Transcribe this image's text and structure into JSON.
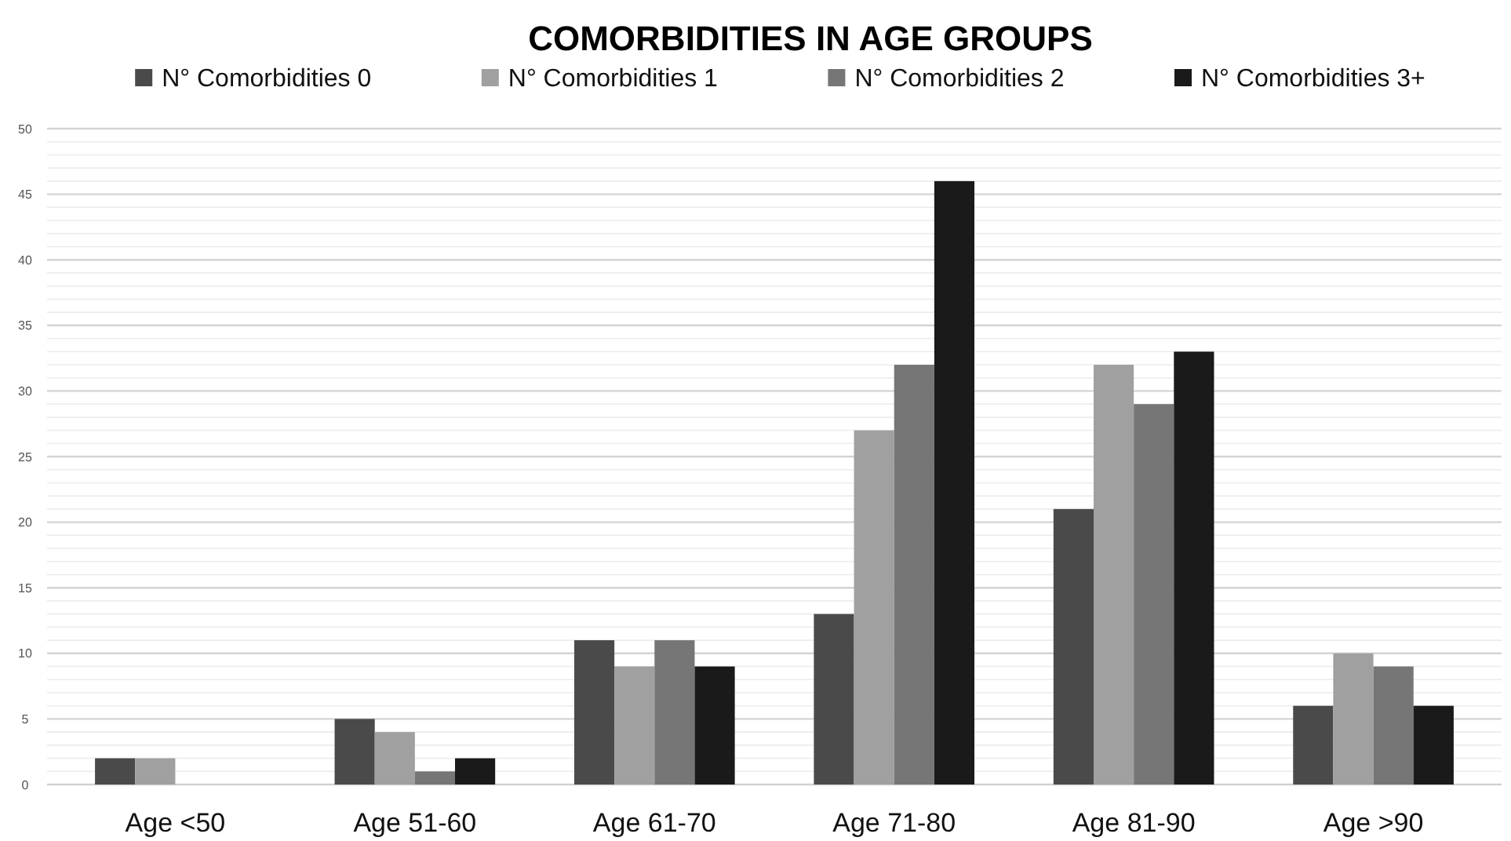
{
  "chart_data": {
    "type": "bar",
    "title": "COMORBIDITIES IN AGE GROUPS",
    "categories": [
      "Age <50",
      "Age 51-60",
      "Age 61-70",
      "Age 71-80",
      "Age 81-90",
      "Age >90"
    ],
    "series": [
      {
        "name": "N° Comorbidities 0",
        "color": "#4a4a4a",
        "values": [
          2,
          5,
          11,
          13,
          21,
          6
        ]
      },
      {
        "name": "N° Comorbidities 1",
        "color": "#a0a0a0",
        "values": [
          2,
          4,
          9,
          27,
          32,
          10
        ]
      },
      {
        "name": "N° Comorbidities 2",
        "color": "#767676",
        "values": [
          0,
          1,
          11,
          32,
          29,
          9
        ]
      },
      {
        "name": "N° Comorbidities 3+",
        "color": "#1a1a1a",
        "values": [
          0,
          2,
          9,
          46,
          33,
          6
        ]
      }
    ],
    "ylim": [
      0,
      50
    ],
    "yticks": [
      0,
      {
        "value": 1,
        "label": null
      },
      {
        "value": 2,
        "label": null
      },
      {
        "value": 3,
        "label": null
      },
      {
        "value": 4,
        "label": null
      },
      5,
      {
        "value": 6,
        "label": null
      },
      {
        "value": 7,
        "label": null
      },
      {
        "value": 8,
        "label": null
      },
      {
        "value": 9,
        "label": null
      },
      10,
      {
        "value": 11,
        "label": null
      },
      {
        "value": 12,
        "label": null
      },
      {
        "value": 13,
        "label": null
      },
      {
        "value": 14,
        "label": null
      },
      15,
      {
        "value": 16,
        "label": null
      },
      {
        "value": 17,
        "label": null
      },
      {
        "value": 18,
        "label": null
      },
      {
        "value": 19,
        "label": null
      },
      20,
      {
        "value": 21,
        "label": null
      },
      {
        "value": 22,
        "label": null
      },
      {
        "value": 23,
        "label": null
      },
      {
        "value": 24,
        "label": null
      },
      25,
      {
        "value": 26,
        "label": null
      },
      {
        "value": 27,
        "label": null
      },
      {
        "value": 28,
        "label": null
      },
      {
        "value": 29,
        "label": null
      },
      30,
      {
        "value": 31,
        "label": null
      },
      {
        "value": 32,
        "label": null
      },
      {
        "value": 33,
        "label": null
      },
      {
        "value": 34,
        "label": null
      },
      35,
      {
        "value": 36,
        "label": null
      },
      {
        "value": 37,
        "label": null
      },
      {
        "value": 38,
        "label": null
      },
      {
        "value": 39,
        "label": null
      },
      40,
      {
        "value": 41,
        "label": null
      },
      {
        "value": 42,
        "label": null
      },
      {
        "value": 43,
        "label": null
      },
      {
        "value": 44,
        "label": null
      },
      45,
      {
        "value": 46,
        "label": null
      },
      {
        "value": 47,
        "label": null
      },
      {
        "value": 48,
        "label": null
      },
      {
        "value": 49,
        "label": null
      },
      50
    ],
    "grid": "y",
    "legend": "top"
  }
}
